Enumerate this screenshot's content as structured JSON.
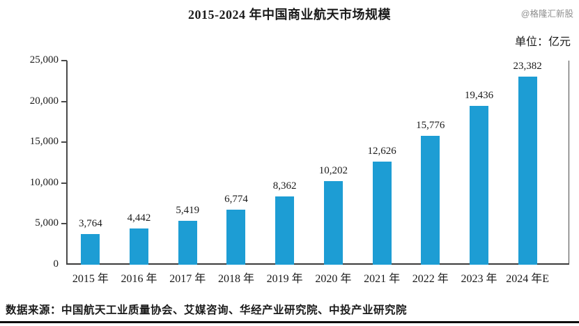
{
  "header": {
    "title": "2015-2024 年中国商业航天市场规模",
    "watermark": "@格隆汇新股",
    "unit_label": "单位：亿元"
  },
  "chart_data": {
    "type": "bar",
    "title": "2015-2024 年中国商业航天市场规模",
    "unit": "亿元",
    "categories": [
      "2015 年",
      "2016 年",
      "2017 年",
      "2018 年",
      "2019 年",
      "2020 年",
      "2021 年",
      "2022 年",
      "2023 年",
      "2024 年E"
    ],
    "values": [
      3764,
      4442,
      5419,
      6774,
      8362,
      10202,
      12626,
      15776,
      19436,
      23382
    ],
    "value_labels": [
      "3,764",
      "4,442",
      "5,419",
      "6,774",
      "8,362",
      "10,202",
      "12,626",
      "15,776",
      "19,436",
      "23,382"
    ],
    "xlabel": "",
    "ylabel": "",
    "ylim": [
      0,
      25000
    ],
    "yticks": [
      0,
      5000,
      10000,
      15000,
      20000,
      25000
    ],
    "ytick_labels": [
      "0",
      "5,000",
      "10,000",
      "15,000",
      "20,000",
      "25,000"
    ],
    "grid": false,
    "legend": "none",
    "bar_color": "#1d9dd4"
  },
  "footer": {
    "source": "数据来源：中国航天工业质量协会、艾媒咨询、华经产业研究院、中投产业研究院"
  }
}
